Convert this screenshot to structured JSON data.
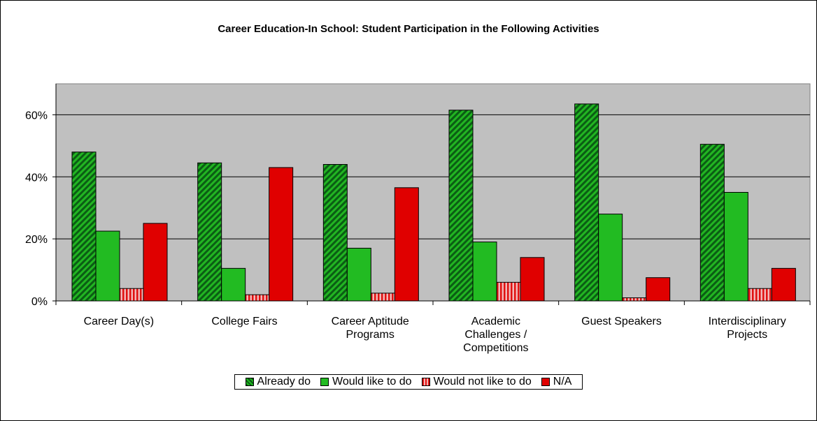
{
  "chart_data": {
    "type": "bar",
    "title": "Career Education-In School: Student Participation in the Following Activities",
    "categories": [
      [
        "Career Day(s)"
      ],
      [
        "College Fairs"
      ],
      [
        "Career Aptitude",
        "Programs"
      ],
      [
        "Academic",
        "Challenges /",
        "Competitions"
      ],
      [
        "Guest Speakers"
      ],
      [
        "Interdisciplinary",
        "Projects"
      ]
    ],
    "series": [
      {
        "name": "Already do",
        "color": "#1fa81f",
        "values": [
          48,
          44.5,
          44,
          61.5,
          63.5,
          50.5
        ]
      },
      {
        "name": "Would like to do",
        "color": "#22bb22",
        "values": [
          22.5,
          10.5,
          17,
          19,
          28,
          35
        ]
      },
      {
        "name": "Would not like to do",
        "color": "#e01010",
        "values": [
          4,
          2,
          2.5,
          6,
          1,
          4
        ]
      },
      {
        "name": "N/A",
        "color": "#e00000",
        "values": [
          25,
          43,
          36.5,
          14,
          7.5,
          10.5
        ]
      }
    ],
    "yticks": [
      "0%",
      "20%",
      "40%",
      "60%"
    ],
    "ytick_values": [
      0,
      20,
      40,
      60
    ],
    "ylim": [
      0,
      70
    ],
    "grid": true,
    "legend_position": "bottom",
    "plot_background": "#c0c0c0"
  }
}
